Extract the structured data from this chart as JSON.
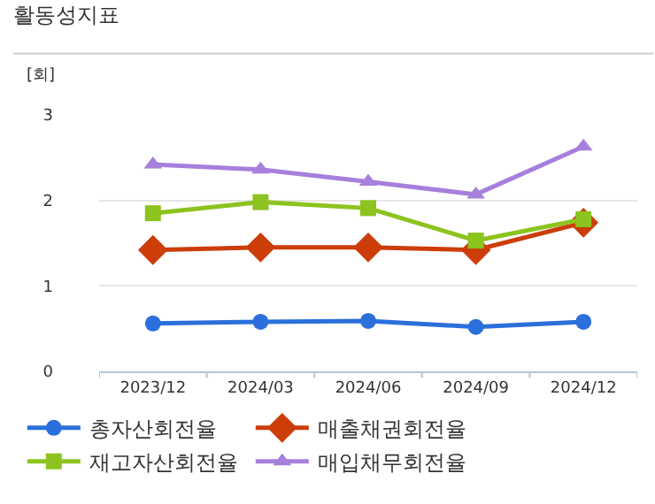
{
  "chart_data": {
    "type": "line",
    "title": "활동성지표",
    "ylabel": "[회]",
    "categories": [
      "2023/12",
      "2024/03",
      "2024/06",
      "2024/09",
      "2024/12"
    ],
    "series": [
      {
        "name": "총자산회전율",
        "color": "#2a6fdb",
        "marker": "circle",
        "values": [
          0.56,
          0.58,
          0.59,
          0.52,
          0.58
        ]
      },
      {
        "name": "매출채권회전율",
        "color": "#cc3d0a",
        "marker": "diamond",
        "values": [
          1.42,
          1.45,
          1.45,
          1.42,
          1.74
        ]
      },
      {
        "name": "재고자산회전율",
        "color": "#8cc31e",
        "marker": "square",
        "values": [
          1.85,
          1.98,
          1.91,
          1.53,
          1.78
        ]
      },
      {
        "name": "매입채무회전율",
        "color": "#a77fdc",
        "marker": "triangle",
        "values": [
          2.42,
          2.36,
          2.22,
          2.07,
          2.63
        ]
      }
    ],
    "ylim": [
      0,
      3
    ],
    "yticks": [
      0,
      1,
      2,
      3
    ],
    "grid": "y",
    "legend": "bottom"
  }
}
